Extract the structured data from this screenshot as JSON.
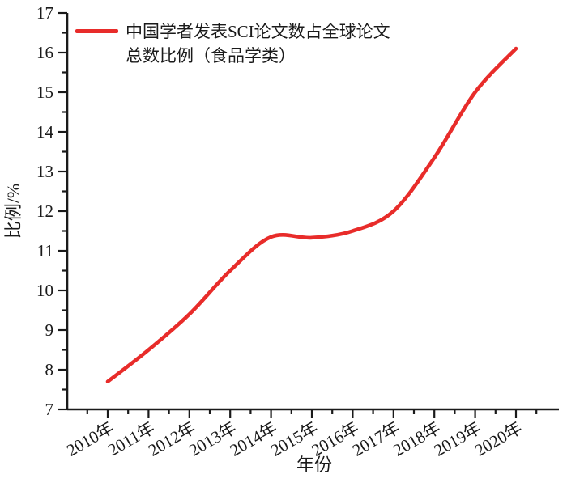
{
  "chart_data": {
    "type": "line",
    "title": "",
    "legend_lines": [
      "中国学者发表SCI论文数占全球论文",
      "总数比例（食品学类）"
    ],
    "legend_label": "中国学者发表SCI论文数占全球论文总数比例（食品学类）",
    "xlabel": "年份",
    "ylabel": "比例/%",
    "x_categories": [
      "2010年",
      "2011年",
      "2012年",
      "2013年",
      "2014年",
      "2015年",
      "2016年",
      "2017年",
      "2018年",
      "2019年",
      "2020年"
    ],
    "x_years": [
      2010,
      2011,
      2012,
      2013,
      2014,
      2015,
      2016,
      2017,
      2018,
      2019,
      2020
    ],
    "series": [
      {
        "name": "中国学者发表SCI论文数占全球论文总数比例（食品学类）",
        "values": [
          7.7,
          8.5,
          9.4,
          10.5,
          11.35,
          11.33,
          11.5,
          12.0,
          13.35,
          15.0,
          16.1
        ]
      }
    ],
    "ylim": [
      7,
      17
    ],
    "y_major_ticks": [
      7,
      8,
      9,
      10,
      11,
      12,
      13,
      14,
      15,
      16,
      17
    ],
    "y_minor_step": 0.5,
    "x_minor_step": 0.5,
    "grid": false,
    "legend_position": "top-left",
    "line_color": "#e82c2a",
    "axis_color": "#1a1a1a"
  }
}
